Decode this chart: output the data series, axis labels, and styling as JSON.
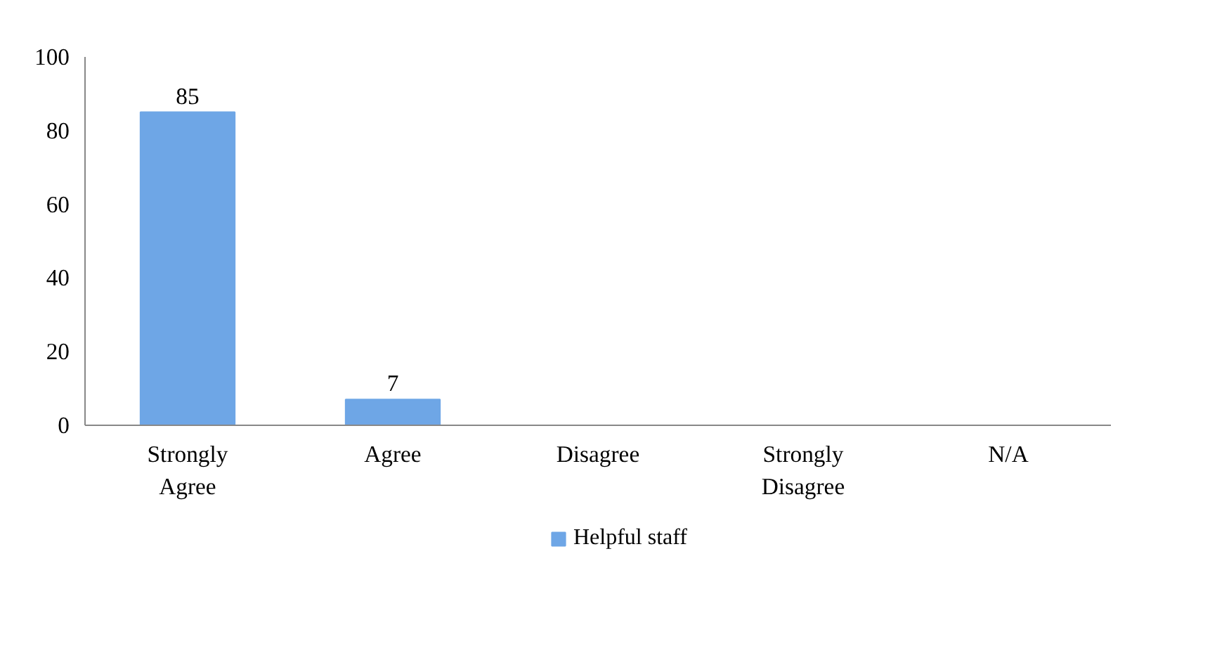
{
  "chart_data": {
    "type": "bar",
    "categories": [
      "Strongly Agree",
      "Agree",
      "Disagree",
      "Strongly Disagree",
      "N/A"
    ],
    "series": [
      {
        "name": "Helpful staff",
        "color": "#6ea6e6",
        "values": [
          85,
          7,
          0,
          0,
          0
        ],
        "value_labels": [
          "85",
          "7",
          null,
          null,
          null
        ]
      }
    ],
    "ylim": [
      0,
      100
    ],
    "yticks": [
      0,
      20,
      40,
      60,
      80,
      100
    ],
    "grid": false,
    "legend": "bottom"
  }
}
